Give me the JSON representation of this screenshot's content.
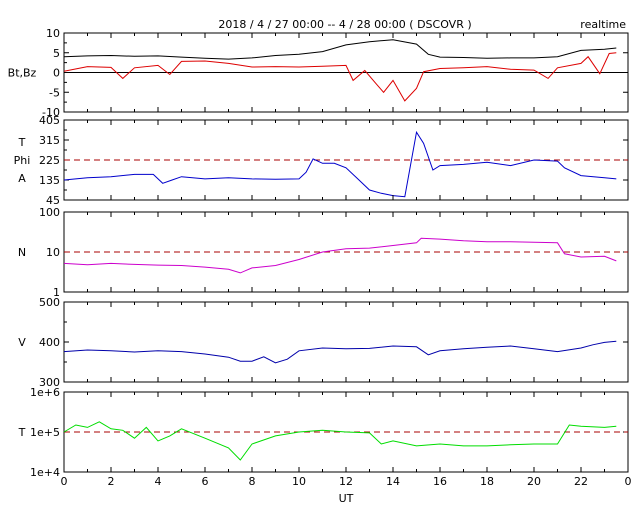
{
  "header": {
    "title": "2018 / 4 / 27   00:00 --  4 / 28  00:00 ( DSCOVR )",
    "mode": "realtime"
  },
  "colors": {
    "bt": "#000000",
    "bz": "#dd0000",
    "phi": "#0000cc",
    "density": "#cc00cc",
    "speed": "#0000aa",
    "temperature": "#00dd00",
    "reference_line": "#aa0000"
  },
  "chart_data": {
    "type": "line",
    "x_axis": {
      "label": "UT",
      "range": [
        0,
        24
      ],
      "ticks": [
        "0",
        "2",
        "4",
        "6",
        "8",
        "10",
        "12",
        "14",
        "16",
        "18",
        "20",
        "22",
        "0"
      ]
    },
    "panels": [
      {
        "id": "bt-bz",
        "ylabel": "Bt,Bz",
        "ylim": [
          -10,
          10
        ],
        "ticks": [
          "10",
          "5",
          "0",
          "-5",
          "-10"
        ],
        "series": [
          {
            "key": "bt",
            "points": [
              [
                0,
                4
              ],
              [
                1,
                4.2
              ],
              [
                2,
                4.3
              ],
              [
                3,
                4.1
              ],
              [
                4,
                4.2
              ],
              [
                5,
                3.9
              ],
              [
                6,
                3.6
              ],
              [
                7,
                3.4
              ],
              [
                8,
                3.7
              ],
              [
                9,
                4.3
              ],
              [
                10,
                4.6
              ],
              [
                11,
                5.3
              ],
              [
                12,
                7
              ],
              [
                13,
                7.8
              ],
              [
                14,
                8.3
              ],
              [
                15,
                7.2
              ],
              [
                15.5,
                4.6
              ],
              [
                16,
                3.9
              ],
              [
                17,
                3.8
              ],
              [
                18,
                3.6
              ],
              [
                19,
                3.7
              ],
              [
                20,
                3.7
              ],
              [
                21,
                4
              ],
              [
                22,
                5.6
              ],
              [
                23,
                5.9
              ],
              [
                23.5,
                6.2
              ]
            ]
          },
          {
            "key": "bz",
            "points": [
              [
                0,
                0.3
              ],
              [
                1,
                1.5
              ],
              [
                2,
                1.3
              ],
              [
                2.5,
                -1.5
              ],
              [
                3,
                1.2
              ],
              [
                4,
                1.8
              ],
              [
                4.5,
                -0.5
              ],
              [
                5,
                2.8
              ],
              [
                6,
                2.9
              ],
              [
                7,
                2.3
              ],
              [
                8,
                1.4
              ],
              [
                9,
                1.5
              ],
              [
                10,
                1.4
              ],
              [
                11,
                1.6
              ],
              [
                12,
                1.8
              ],
              [
                12.3,
                -2
              ],
              [
                12.8,
                0.5
              ],
              [
                13.3,
                -3
              ],
              [
                13.6,
                -5
              ],
              [
                14,
                -2
              ],
              [
                14.5,
                -7.2
              ],
              [
                15,
                -4
              ],
              [
                15.3,
                0.2
              ],
              [
                16,
                1
              ],
              [
                17,
                1.2
              ],
              [
                18,
                1.5
              ],
              [
                19,
                0.8
              ],
              [
                20,
                0.6
              ],
              [
                20.6,
                -1.5
              ],
              [
                21,
                1.2
              ],
              [
                22,
                2.3
              ],
              [
                22.3,
                4
              ],
              [
                22.8,
                -0.3
              ],
              [
                23.2,
                4.8
              ],
              [
                23.5,
                5
              ]
            ]
          }
        ],
        "reference": 0
      },
      {
        "id": "phi",
        "ylabel": [
          "T",
          "Phi",
          "A"
        ],
        "ylim": [
          45,
          405
        ],
        "ticks": [
          "405",
          "315",
          "225",
          "135",
          "45"
        ],
        "series": [
          {
            "key": "phi",
            "points": [
              [
                0,
                135
              ],
              [
                1,
                145
              ],
              [
                2,
                150
              ],
              [
                3,
                160
              ],
              [
                3.8,
                160
              ],
              [
                4.2,
                120
              ],
              [
                4.6,
                135
              ],
              [
                5,
                150
              ],
              [
                6,
                140
              ],
              [
                7,
                145
              ],
              [
                8,
                140
              ],
              [
                9,
                138
              ],
              [
                10,
                140
              ],
              [
                10.3,
                170
              ],
              [
                10.6,
                230
              ],
              [
                11,
                210
              ],
              [
                11.5,
                210
              ],
              [
                12,
                190
              ],
              [
                12.5,
                140
              ],
              [
                13,
                90
              ],
              [
                13.5,
                75
              ],
              [
                14,
                65
              ],
              [
                14.5,
                60
              ],
              [
                15,
                350
              ],
              [
                15.3,
                300
              ],
              [
                15.7,
                180
              ],
              [
                16,
                200
              ],
              [
                17,
                205
              ],
              [
                18,
                215
              ],
              [
                19,
                200
              ],
              [
                20,
                225
              ],
              [
                21,
                220
              ],
              [
                21.3,
                190
              ],
              [
                22,
                155
              ],
              [
                23,
                145
              ],
              [
                23.5,
                140
              ]
            ]
          }
        ],
        "reference": 225
      },
      {
        "id": "density",
        "ylabel": "N",
        "ylim": [
          1,
          100
        ],
        "scale": "log",
        "ticks": [
          "100",
          "10",
          "1"
        ],
        "series": [
          {
            "key": "density",
            "points": [
              [
                0,
                5.2
              ],
              [
                1,
                4.8
              ],
              [
                2,
                5.2
              ],
              [
                3,
                4.9
              ],
              [
                4,
                4.7
              ],
              [
                5,
                4.6
              ],
              [
                6,
                4.2
              ],
              [
                7,
                3.7
              ],
              [
                7.5,
                3
              ],
              [
                8,
                4
              ],
              [
                9,
                4.6
              ],
              [
                10,
                6.5
              ],
              [
                11,
                10
              ],
              [
                12,
                12
              ],
              [
                13,
                12.5
              ],
              [
                14,
                14.5
              ],
              [
                15,
                17
              ],
              [
                15.2,
                22
              ],
              [
                16,
                21
              ],
              [
                17,
                19
              ],
              [
                18,
                18
              ],
              [
                19,
                18
              ],
              [
                20,
                17.5
              ],
              [
                21,
                17
              ],
              [
                21.3,
                9
              ],
              [
                22,
                7.5
              ],
              [
                23,
                7.8
              ],
              [
                23.5,
                6
              ]
            ]
          }
        ],
        "reference": 10
      },
      {
        "id": "speed",
        "ylabel": "V",
        "ylim": [
          300,
          500
        ],
        "ticks": [
          "500",
          "400",
          "300"
        ],
        "series": [
          {
            "key": "speed",
            "points": [
              [
                0,
                376
              ],
              [
                1,
                380
              ],
              [
                2,
                378
              ],
              [
                3,
                375
              ],
              [
                4,
                378
              ],
              [
                5,
                376
              ],
              [
                6,
                370
              ],
              [
                7,
                362
              ],
              [
                7.5,
                352
              ],
              [
                8,
                352
              ],
              [
                8.5,
                363
              ],
              [
                9,
                348
              ],
              [
                9.5,
                357
              ],
              [
                10,
                378
              ],
              [
                11,
                385
              ],
              [
                12,
                383
              ],
              [
                13,
                384
              ],
              [
                14,
                390
              ],
              [
                15,
                388
              ],
              [
                15.5,
                368
              ],
              [
                16,
                378
              ],
              [
                17,
                383
              ],
              [
                18,
                387
              ],
              [
                19,
                390
              ],
              [
                20,
                383
              ],
              [
                21,
                376
              ],
              [
                22,
                385
              ],
              [
                22.5,
                393
              ],
              [
                23,
                399
              ],
              [
                23.5,
                402
              ]
            ]
          }
        ],
        "reference": null
      },
      {
        "id": "temperature",
        "ylabel": "T",
        "ylim": [
          10000,
          1000000
        ],
        "scale": "log",
        "ticks": [
          "1e+6",
          "1e+5",
          "1e+4"
        ],
        "series": [
          {
            "key": "temperature",
            "points": [
              [
                0,
                100000
              ],
              [
                0.5,
                150000
              ],
              [
                1,
                130000
              ],
              [
                1.5,
                180000
              ],
              [
                2,
                120000
              ],
              [
                2.5,
                110000
              ],
              [
                3,
                70000
              ],
              [
                3.5,
                130000
              ],
              [
                4,
                60000
              ],
              [
                4.5,
                80000
              ],
              [
                5,
                120000
              ],
              [
                6,
                70000
              ],
              [
                7,
                40000
              ],
              [
                7.5,
                20000
              ],
              [
                8,
                50000
              ],
              [
                9,
                80000
              ],
              [
                10,
                100000
              ],
              [
                11,
                110000
              ],
              [
                12,
                100000
              ],
              [
                13,
                95000
              ],
              [
                13.5,
                50000
              ],
              [
                14,
                60000
              ],
              [
                15,
                45000
              ],
              [
                16,
                50000
              ],
              [
                17,
                45000
              ],
              [
                18,
                45000
              ],
              [
                19,
                48000
              ],
              [
                20,
                50000
              ],
              [
                21,
                50000
              ],
              [
                21.5,
                150000
              ],
              [
                22,
                140000
              ],
              [
                23,
                130000
              ],
              [
                23.5,
                140000
              ]
            ]
          }
        ],
        "reference": 100000
      }
    ]
  }
}
